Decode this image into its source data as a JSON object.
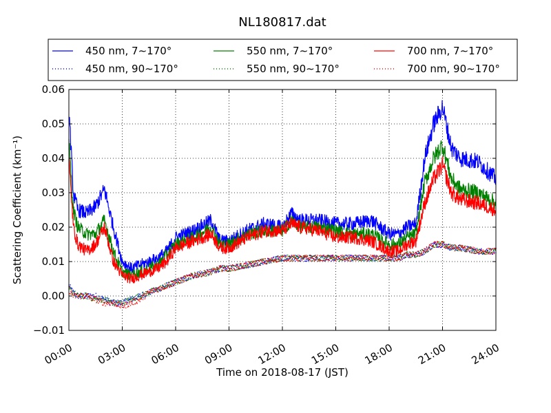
{
  "chart_data": {
    "type": "line",
    "title": "NL180817.dat",
    "xlabel": "Time on 2018-08-17 (JST)",
    "ylabel": "Scattering Coefficient (km⁻¹)",
    "xlim": [
      "00:00",
      "24:00"
    ],
    "ylim": [
      -0.01,
      0.06
    ],
    "x_ticks": [
      "00:00",
      "03:00",
      "06:00",
      "09:00",
      "12:00",
      "15:00",
      "18:00",
      "21:00",
      "24:00"
    ],
    "y_ticks": [
      "−0.01",
      "0.00",
      "0.01",
      "0.02",
      "0.03",
      "0.04",
      "0.05",
      "0.06"
    ],
    "grid": true,
    "legend_placement": "top",
    "x_hours": [
      0,
      0.25,
      0.5,
      1,
      1.5,
      2,
      2.5,
      3,
      3.5,
      4,
      4.5,
      5,
      5.5,
      6,
      7,
      8,
      8.5,
      9,
      10,
      11,
      12,
      12.5,
      13,
      14,
      15,
      16,
      17,
      18,
      18.5,
      19,
      19.5,
      20,
      20.5,
      21,
      21.5,
      22,
      23,
      24
    ],
    "series": [
      {
        "name": "450 nm, 7∼170°",
        "color": "#0000ff",
        "style": "solid",
        "values": [
          0.055,
          0.03,
          0.025,
          0.024,
          0.026,
          0.031,
          0.02,
          0.01,
          0.008,
          0.009,
          0.01,
          0.011,
          0.013,
          0.017,
          0.019,
          0.022,
          0.016,
          0.016,
          0.019,
          0.021,
          0.02,
          0.024,
          0.022,
          0.022,
          0.021,
          0.021,
          0.022,
          0.018,
          0.018,
          0.02,
          0.021,
          0.04,
          0.05,
          0.055,
          0.043,
          0.04,
          0.039,
          0.034
        ]
      },
      {
        "name": "450 nm, 90∼170°",
        "color": "#0000ff",
        "style": "dotted",
        "values": [
          0.003,
          0.001,
          0.0,
          0.0,
          0.0,
          -0.001,
          -0.002,
          -0.002,
          -0.001,
          0.0,
          0.001,
          0.002,
          0.003,
          0.004,
          0.006,
          0.007,
          0.008,
          0.008,
          0.009,
          0.01,
          0.011,
          0.011,
          0.011,
          0.011,
          0.011,
          0.011,
          0.011,
          0.011,
          0.011,
          0.012,
          0.012,
          0.013,
          0.015,
          0.015,
          0.014,
          0.014,
          0.013,
          0.013
        ]
      },
      {
        "name": "550 nm, 7∼170°",
        "color": "#008000",
        "style": "solid",
        "values": [
          0.045,
          0.025,
          0.02,
          0.018,
          0.018,
          0.022,
          0.013,
          0.007,
          0.006,
          0.007,
          0.008,
          0.009,
          0.012,
          0.015,
          0.017,
          0.02,
          0.015,
          0.015,
          0.018,
          0.019,
          0.019,
          0.022,
          0.02,
          0.02,
          0.019,
          0.018,
          0.018,
          0.015,
          0.015,
          0.017,
          0.018,
          0.033,
          0.04,
          0.044,
          0.034,
          0.031,
          0.03,
          0.027
        ]
      },
      {
        "name": "550 nm, 90∼170°",
        "color": "#008000",
        "style": "dotted",
        "values": [
          0.002,
          0.001,
          0.0,
          0.0,
          -0.001,
          -0.001,
          -0.002,
          -0.002,
          -0.001,
          0.0,
          0.001,
          0.002,
          0.003,
          0.004,
          0.006,
          0.007,
          0.008,
          0.008,
          0.009,
          0.01,
          0.011,
          0.011,
          0.011,
          0.011,
          0.011,
          0.011,
          0.011,
          0.011,
          0.011,
          0.012,
          0.012,
          0.013,
          0.015,
          0.015,
          0.014,
          0.014,
          0.013,
          0.013
        ]
      },
      {
        "name": "700 nm, 7∼170°",
        "color": "#ff0000",
        "style": "solid",
        "values": [
          0.04,
          0.02,
          0.015,
          0.013,
          0.015,
          0.02,
          0.01,
          0.006,
          0.005,
          0.006,
          0.007,
          0.008,
          0.01,
          0.014,
          0.016,
          0.018,
          0.014,
          0.014,
          0.017,
          0.019,
          0.019,
          0.021,
          0.02,
          0.019,
          0.017,
          0.017,
          0.016,
          0.013,
          0.013,
          0.015,
          0.016,
          0.027,
          0.034,
          0.038,
          0.03,
          0.028,
          0.027,
          0.025
        ]
      },
      {
        "name": "700 nm, 90∼170°",
        "color": "#ff0000",
        "style": "dotted",
        "values": [
          0.002,
          0.0,
          0.0,
          0.0,
          -0.001,
          -0.002,
          -0.002,
          -0.003,
          -0.002,
          -0.001,
          0.001,
          0.002,
          0.003,
          0.004,
          0.006,
          0.007,
          0.008,
          0.008,
          0.009,
          0.01,
          0.011,
          0.011,
          0.011,
          0.011,
          0.011,
          0.011,
          0.011,
          0.011,
          0.011,
          0.012,
          0.012,
          0.013,
          0.015,
          0.015,
          0.014,
          0.014,
          0.013,
          0.013
        ]
      }
    ]
  }
}
